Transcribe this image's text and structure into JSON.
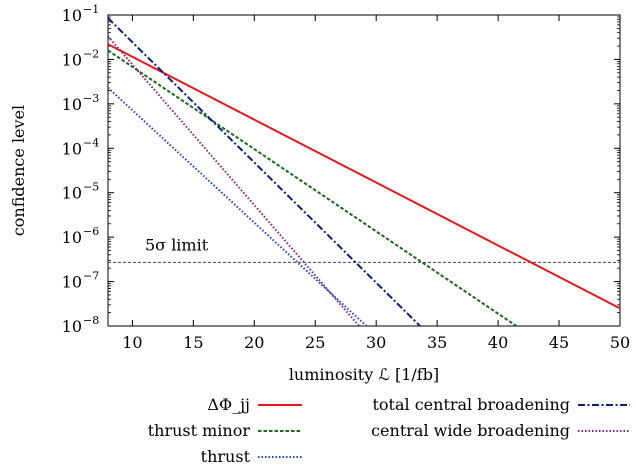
{
  "chart_data": {
    "type": "line",
    "xlabel": "luminosity ℒ [1/fb]",
    "ylabel": "confidence level",
    "xlim": [
      8,
      50
    ],
    "ylim_exp": [
      -8,
      -1
    ],
    "y_scale": "log",
    "x_ticks": [
      10,
      15,
      20,
      25,
      30,
      35,
      40,
      45,
      50
    ],
    "x_tick_labels": [
      "10",
      "15",
      "20",
      "25",
      "30",
      "35",
      "40",
      "45",
      "50"
    ],
    "y_ticks_exp": [
      -8,
      -7,
      -6,
      -5,
      -4,
      -3,
      -2,
      -1
    ],
    "y_tick_base": "10",
    "y_tick_exponents": [
      "−8",
      "−7",
      "−6",
      "−5",
      "−4",
      "−3",
      "−2",
      "−1"
    ],
    "grid": false,
    "legend_position": "below",
    "reference_line": {
      "label": "5σ limit",
      "y": 2.7e-07
    },
    "series": [
      {
        "name": "ΔΦ_jj",
        "color": "#e41a1c",
        "dash": "solid",
        "points": [
          [
            8,
            0.022
          ],
          [
            50,
            2.5e-08
          ]
        ]
      },
      {
        "name": "thrust minor",
        "color": "#1a6b1a",
        "dash": "short-dash",
        "points": [
          [
            8,
            0.016
          ],
          [
            41.5,
            1e-08
          ]
        ]
      },
      {
        "name": "thrust",
        "color": "#1f3fd9",
        "dash": "dotted",
        "points": [
          [
            8,
            0.0023
          ],
          [
            29.2,
            1e-08
          ]
        ]
      },
      {
        "name": "total central broadening",
        "color": "#0a1f7a",
        "dash": "dash-dot",
        "points": [
          [
            8,
            0.085
          ],
          [
            33.6,
            1e-08
          ]
        ]
      },
      {
        "name": "central wide broadening",
        "color": "#8b1a8b",
        "dash": "dotted",
        "points": [
          [
            8,
            0.033
          ],
          [
            28.6,
            1e-08
          ]
        ]
      }
    ]
  }
}
